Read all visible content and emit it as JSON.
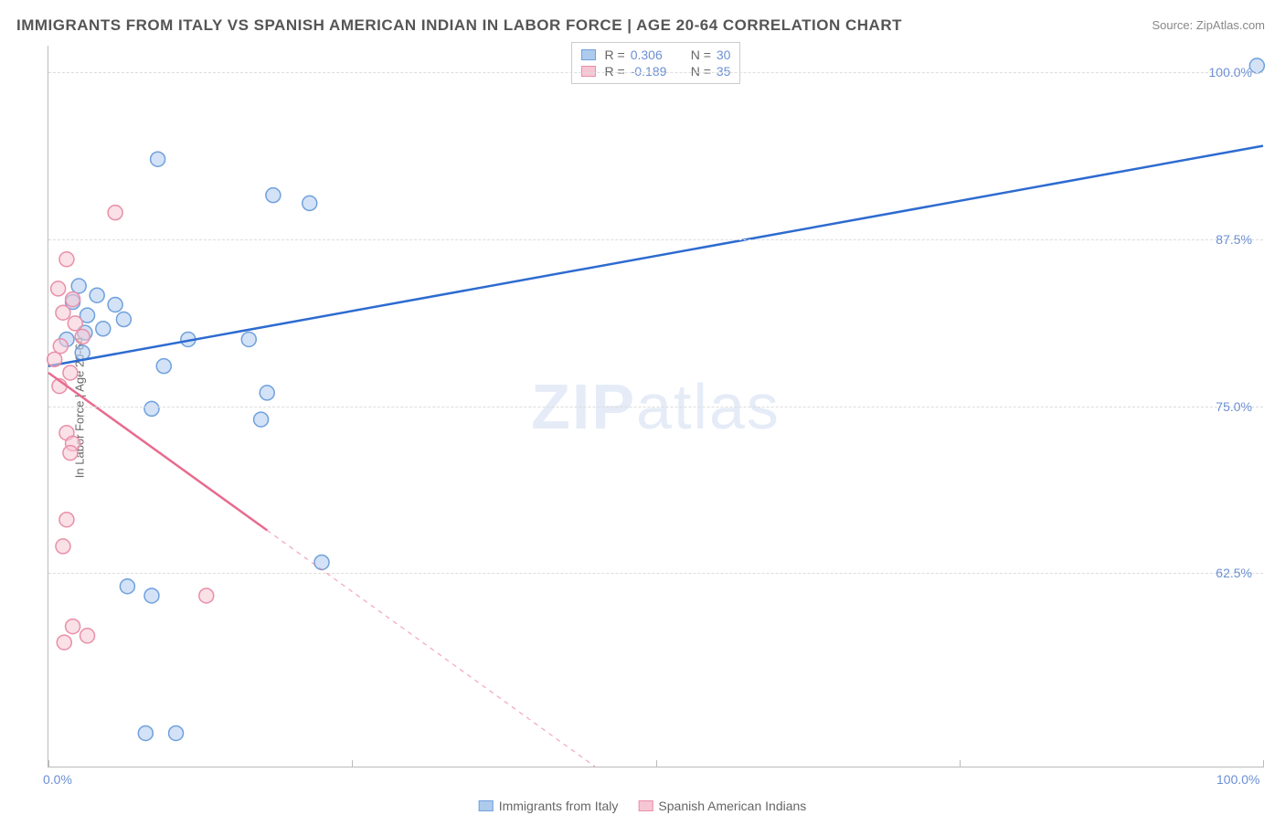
{
  "title": "IMMIGRANTS FROM ITALY VS SPANISH AMERICAN INDIAN IN LABOR FORCE | AGE 20-64 CORRELATION CHART",
  "source": "Source: ZipAtlas.com",
  "ylabel": "In Labor Force | Age 20-64",
  "watermark_a": "ZIP",
  "watermark_b": "atlas",
  "chart": {
    "type": "scatter-with-regression",
    "background_color": "#ffffff",
    "grid_color": "#dddddd",
    "axis_color": "#bbbbbb",
    "text_color": "#666666",
    "value_color": "#6b8fd4",
    "xlim": [
      0,
      100
    ],
    "ylim": [
      48,
      102
    ],
    "xticks_major": [
      0,
      25,
      50,
      75,
      100
    ],
    "xtick_labels": {
      "0": "0.0%",
      "100": "100.0%"
    },
    "yticks": [
      62.5,
      75.0,
      87.5,
      100.0
    ],
    "ytick_labels": [
      "62.5%",
      "75.0%",
      "87.5%",
      "100.0%"
    ],
    "marker_radius": 8,
    "marker_opacity": 0.55,
    "line_width": 2.5,
    "series": [
      {
        "label": "Immigrants from Italy",
        "color_fill": "#aecbee",
        "color_stroke": "#6fa0dd",
        "line_color": "#2d6bd0",
        "r": "0.306",
        "n": "30",
        "regression": {
          "x1": 0,
          "y1": 78.0,
          "x2": 100,
          "y2": 94.5,
          "dash_from_x": null
        },
        "points": [
          {
            "x": 99.5,
            "y": 100.5
          },
          {
            "x": 9.0,
            "y": 93.5
          },
          {
            "x": 18.5,
            "y": 90.8
          },
          {
            "x": 21.5,
            "y": 90.2
          },
          {
            "x": 2.5,
            "y": 84.0
          },
          {
            "x": 4.0,
            "y": 83.3
          },
          {
            "x": 5.5,
            "y": 82.6
          },
          {
            "x": 3.2,
            "y": 81.8
          },
          {
            "x": 6.2,
            "y": 81.5
          },
          {
            "x": 11.5,
            "y": 80.0
          },
          {
            "x": 3.0,
            "y": 80.5
          },
          {
            "x": 16.5,
            "y": 80.0
          },
          {
            "x": 9.5,
            "y": 78.0
          },
          {
            "x": 18.0,
            "y": 76.0
          },
          {
            "x": 8.5,
            "y": 74.8
          },
          {
            "x": 17.5,
            "y": 74.0
          },
          {
            "x": 22.5,
            "y": 63.3
          },
          {
            "x": 6.5,
            "y": 61.5
          },
          {
            "x": 8.5,
            "y": 60.8
          },
          {
            "x": 8.0,
            "y": 50.5
          },
          {
            "x": 10.5,
            "y": 50.5
          },
          {
            "x": 2.0,
            "y": 82.8
          },
          {
            "x": 4.5,
            "y": 80.8
          },
          {
            "x": 1.5,
            "y": 80.0
          },
          {
            "x": 2.8,
            "y": 79.0
          }
        ]
      },
      {
        "label": "Spanish American Indians",
        "color_fill": "#f6c6d3",
        "color_stroke": "#e98fa8",
        "line_color": "#e86b8f",
        "r": "-0.189",
        "n": "35",
        "regression": {
          "x1": 0,
          "y1": 77.5,
          "x2": 45,
          "y2": 48.0,
          "dash_from_x": 18
        },
        "points": [
          {
            "x": 5.5,
            "y": 89.5
          },
          {
            "x": 1.5,
            "y": 86.0
          },
          {
            "x": 0.8,
            "y": 83.8
          },
          {
            "x": 2.0,
            "y": 83.0
          },
          {
            "x": 1.2,
            "y": 82.0
          },
          {
            "x": 2.2,
            "y": 81.2
          },
          {
            "x": 2.8,
            "y": 80.2
          },
          {
            "x": 1.0,
            "y": 79.5
          },
          {
            "x": 0.5,
            "y": 78.5
          },
          {
            "x": 1.8,
            "y": 77.5
          },
          {
            "x": 0.9,
            "y": 76.5
          },
          {
            "x": 1.5,
            "y": 73.0
          },
          {
            "x": 2.0,
            "y": 72.2
          },
          {
            "x": 1.8,
            "y": 71.5
          },
          {
            "x": 1.5,
            "y": 66.5
          },
          {
            "x": 1.2,
            "y": 64.5
          },
          {
            "x": 13.0,
            "y": 60.8
          },
          {
            "x": 2.0,
            "y": 58.5
          },
          {
            "x": 3.2,
            "y": 57.8
          },
          {
            "x": 1.3,
            "y": 57.3
          }
        ]
      }
    ]
  }
}
